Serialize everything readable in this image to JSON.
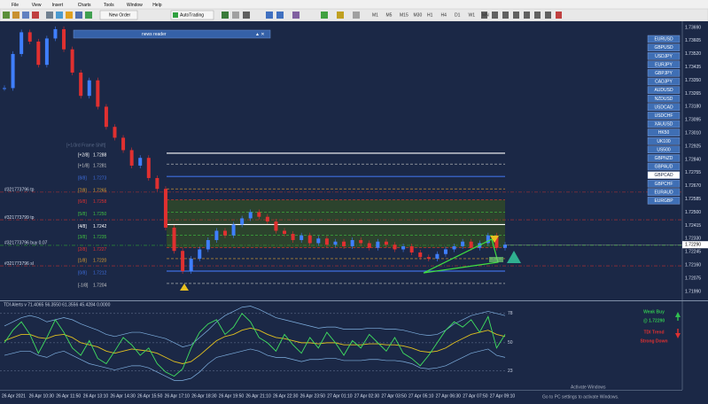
{
  "menu": [
    "File",
    "View",
    "Insert",
    "Charts",
    "Tools",
    "Window",
    "Help"
  ],
  "toolbar": {
    "new_order": "New Order",
    "auto_trading": "AutoTrading",
    "timeframes": [
      "M1",
      "M5",
      "M15",
      "M30",
      "H1",
      "H4",
      "D1",
      "W1",
      "MN"
    ]
  },
  "news_reader": "news reader",
  "chart": {
    "ylim": [
      1.71937,
      1.73731
    ],
    "price_axis": [
      "1.73690",
      "1.73605",
      "1.73520",
      "1.73435",
      "1.73350",
      "1.73265",
      "1.73180",
      "1.73095",
      "1.73010",
      "1.72925",
      "1.72840",
      "1.72755",
      "1.72670",
      "1.72585",
      "1.72500",
      "1.72415",
      "1.72330",
      "1.72245",
      "1.72160",
      "1.72075",
      "1.71990"
    ],
    "current_price": {
      "value": 1.7229,
      "label": "1.72290"
    },
    "frame_shift": "[+1/3rd Frame Shift]",
    "levels": [
      {
        "name": "[+2/8]",
        "price": 1.7288,
        "color": "#ffffff",
        "dash": false
      },
      {
        "name": "[+1/8]",
        "price": 1.7281,
        "color": "#c8c8c8",
        "dash": true
      },
      {
        "name": "[8/8]",
        "price": 1.7273,
        "color": "#3f6fe0",
        "dash": false
      },
      {
        "name": "[7/8]",
        "price": 1.7265,
        "color": "#e0a030",
        "dash": true
      },
      {
        "name": "[6/8]",
        "price": {
          "value": 1.7258,
          "label": "1.7258"
        },
        "color": "#e03030",
        "dash": true
      },
      {
        "name": "[5/8]",
        "price": {
          "value": 1.725,
          "label": "1.7250"
        },
        "color": "#40c040",
        "dash": true
      },
      {
        "name": "[4/8]",
        "price": 1.7242,
        "color": "#ffffff",
        "dash": false
      },
      {
        "name": "[3/8]",
        "price": 1.7235,
        "color": "#40c040",
        "dash": true
      },
      {
        "name": "[2/8]",
        "price": 1.7227,
        "color": "#e03030",
        "dash": true
      },
      {
        "name": "[1/8]",
        "price": {
          "value": 1.722,
          "label": "1.7220"
        },
        "color": "#e0a030",
        "dash": true
      },
      {
        "name": "[0/8]",
        "price": 1.7212,
        "color": "#3f6fe0",
        "dash": false
      },
      {
        "name": "[-1/8]",
        "price": 1.7204,
        "color": "#c8c8c8",
        "dash": true
      }
    ],
    "orders": [
      {
        "label": "#321773796 tp",
        "price": 1.72629,
        "color": "#c03030"
      },
      {
        "label": "#321773799 tp",
        "price": 1.72451,
        "color": "#c03030"
      },
      {
        "label": "#321773796 buy 0.07",
        "price": 1.72286,
        "color": "#30a030"
      },
      {
        "label": "#321773796 sl",
        "price": 1.72154,
        "color": "#c03030"
      }
    ],
    "closes": [
      1.733,
      1.7352,
      1.7366,
      1.736,
      1.7345,
      1.7362,
      1.7368,
      1.7355,
      1.734,
      1.7325,
      1.7335,
      1.7318,
      1.7305,
      1.7298,
      1.729,
      1.728,
      1.7285,
      1.7272,
      1.7265,
      1.724,
      1.7225,
      1.7212,
      1.722,
      1.7226,
      1.7232,
      1.7238,
      1.7235,
      1.7242,
      1.7246,
      1.725,
      1.7247,
      1.7244,
      1.7238,
      1.7236,
      1.7232,
      1.7235,
      1.723,
      1.7233,
      1.7229,
      1.7231,
      1.7228,
      1.7232,
      1.723,
      1.7227,
      1.7231,
      1.7229,
      1.7226,
      1.7228,
      1.7224,
      1.7221,
      1.722,
      1.7223,
      1.7226,
      1.7228,
      1.7231,
      1.7227,
      1.723,
      1.7235,
      1.7227,
      1.7229
    ],
    "up_color": "#3f7fff",
    "down_color": "#e03030",
    "symbols": [
      "EURUSD",
      "GBPUSD",
      "USDJPY",
      "EURJPY",
      "GBPJPY",
      "CADJPY",
      "AUDUSD",
      "NZDUSD",
      "USDCAD",
      "USDCHF",
      "XAUUSD",
      "HK50",
      "UK100",
      "US500",
      "GBPNZD",
      "GBPAUD",
      "GBPCAD",
      "GBPCHF",
      "EURAUD",
      "EURGBP"
    ],
    "selected_symbol": "GBPCAD"
  },
  "indicator": {
    "title": "TDI Alerts v 71.4065 56.3550 61.3556 45.4284 0.0000",
    "ylim": [
      5,
      88
    ],
    "levels": [
      78,
      50,
      23
    ],
    "rsi": [
      50,
      62,
      70,
      58,
      40,
      55,
      72,
      60,
      45,
      38,
      52,
      35,
      30,
      42,
      55,
      48,
      38,
      45,
      30,
      22,
      18,
      25,
      45,
      60,
      68,
      72,
      58,
      65,
      78,
      70,
      55,
      50,
      42,
      58,
      48,
      40,
      55,
      45,
      60,
      50,
      38,
      52,
      45,
      58,
      50,
      42,
      55,
      40,
      35,
      28,
      38,
      50,
      62,
      70,
      65,
      72,
      60,
      75,
      45,
      58
    ],
    "signal": [
      52,
      55,
      58,
      58,
      55,
      54,
      57,
      58,
      55,
      50,
      48,
      46,
      42,
      40,
      42,
      44,
      43,
      42,
      40,
      36,
      32,
      30,
      32,
      38,
      45,
      52,
      56,
      58,
      62,
      64,
      62,
      58,
      55,
      54,
      52,
      50,
      50,
      49,
      50,
      50,
      48,
      48,
      48,
      49,
      49,
      48,
      48,
      47,
      45,
      42,
      41,
      42,
      45,
      50,
      54,
      58,
      60,
      62,
      58,
      56
    ],
    "upper": [
      66,
      70,
      74,
      76,
      74,
      70,
      72,
      74,
      72,
      68,
      65,
      62,
      58,
      56,
      58,
      60,
      60,
      58,
      56,
      54,
      50,
      46,
      48,
      55,
      62,
      70,
      76,
      80,
      84,
      85,
      82,
      78,
      74,
      72,
      70,
      68,
      66,
      64,
      65,
      65,
      63,
      63,
      63,
      64,
      64,
      63,
      63,
      62,
      60,
      58,
      57,
      58,
      62,
      68,
      72,
      76,
      78,
      80,
      78,
      76
    ],
    "lower": [
      38,
      40,
      42,
      42,
      38,
      36,
      40,
      42,
      38,
      34,
      30,
      28,
      26,
      24,
      26,
      28,
      28,
      26,
      22,
      18,
      14,
      14,
      16,
      22,
      30,
      36,
      38,
      40,
      42,
      44,
      42,
      38,
      36,
      36,
      34,
      32,
      34,
      34,
      35,
      35,
      33,
      33,
      33,
      34,
      34,
      33,
      33,
      32,
      30,
      26,
      25,
      26,
      28,
      32,
      36,
      40,
      42,
      44,
      38,
      36
    ],
    "rsi_color": "#40e060",
    "signal_color": "#e0c020",
    "band_color": "#7fb0e0",
    "signal_box": {
      "status": "Weak Buy",
      "price": "@ 1.72290",
      "trend_title": "TDI Trend",
      "trend": "Strong Down"
    }
  },
  "time_axis": [
    "26 Apr 2021",
    "26 Apr 10:30",
    "26 Apr 11:50",
    "26 Apr 13:10",
    "26 Apr 14:30",
    "26 Apr 15:50",
    "26 Apr 17:10",
    "26 Apr 18:30",
    "26 Apr 19:50",
    "26 Apr 21:10",
    "26 Apr 22:30",
    "26 Apr 23:50",
    "27 Apr 01:10",
    "27 Apr 02:30",
    "27 Apr 03:50",
    "27 Apr 05:10",
    "27 Apr 06:30",
    "27 Apr 07:50",
    "27 Apr 09:10"
  ],
  "watermark": {
    "title": "Activate Windows",
    "text": "Go to PC settings to activate Windows."
  }
}
